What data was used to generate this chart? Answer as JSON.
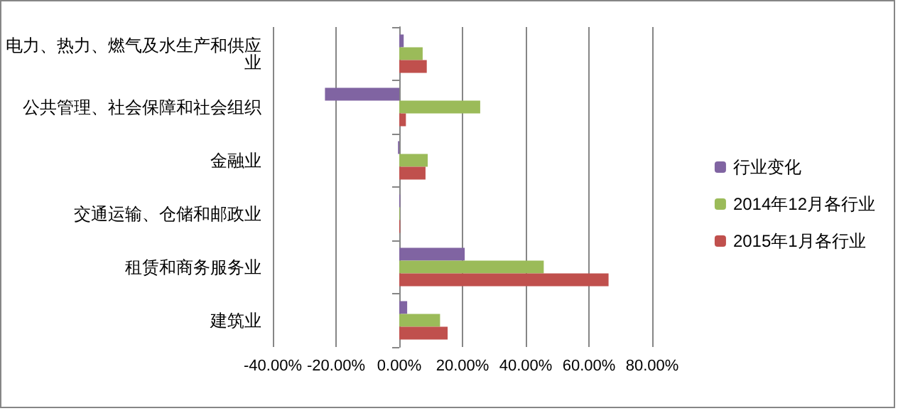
{
  "chart_data": {
    "type": "bar",
    "orientation": "horizontal",
    "categories": [
      "电力、热力、燃气及水生产和供应业",
      "公共管理、社会保障和社会组织",
      "金融业",
      "交通运输、仓储和邮政业",
      "租赁和商务服务业",
      "建筑业"
    ],
    "series": [
      {
        "name": "行业变化",
        "color": "#8064a2",
        "values": [
          1.4,
          -23.5,
          -0.4,
          0.3,
          20.7,
          2.5
        ]
      },
      {
        "name": "2014年12月各行业",
        "color": "#9bbb59",
        "values": [
          7.4,
          25.6,
          9,
          0.2,
          45.7,
          12.9
        ]
      },
      {
        "name": "2015年1月各行业",
        "color": "#c0504d",
        "values": [
          8.7,
          2.1,
          8.3,
          0.3,
          66.2,
          15.3
        ]
      }
    ],
    "xlim": [
      -40,
      80
    ],
    "xticks": [
      {
        "value": -40,
        "label": "-40.00%"
      },
      {
        "value": -20,
        "label": "-20.00%"
      },
      {
        "value": 0,
        "label": "0.00%"
      },
      {
        "value": 20,
        "label": "20.00%"
      },
      {
        "value": 40,
        "label": "40.00%"
      },
      {
        "value": 60,
        "label": "60.00%"
      },
      {
        "value": 80,
        "label": "80.00%"
      }
    ],
    "grid": "x",
    "legend": "right"
  }
}
